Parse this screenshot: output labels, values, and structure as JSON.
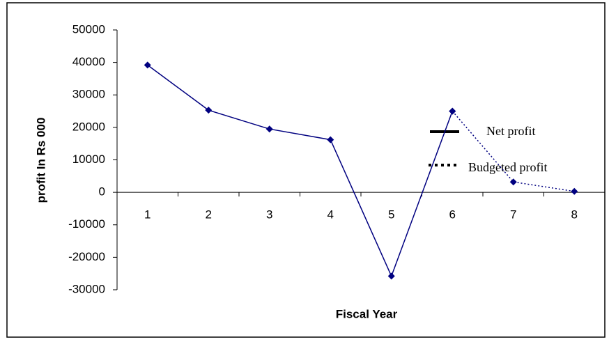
{
  "chart_data": {
    "type": "line",
    "x_label": "Fiscal Year",
    "y_label": "profit In Rs 000",
    "categories": [
      "1",
      "2",
      "3",
      "4",
      "5",
      "6",
      "7",
      "8"
    ],
    "series": [
      {
        "name": "Net profit",
        "color": "#000080",
        "line_style": "solid",
        "values": [
          39200,
          25300,
          19500,
          16200,
          -25800,
          25000,
          null,
          null
        ]
      },
      {
        "name": "Budgeted profit",
        "color": "#000080",
        "line_style": "dotted",
        "values": [
          null,
          null,
          null,
          null,
          null,
          25000,
          3200,
          300
        ]
      }
    ],
    "ylim": [
      -30000,
      50000
    ],
    "yticks": [
      -30000,
      -20000,
      -10000,
      0,
      10000,
      20000,
      30000,
      40000,
      50000
    ]
  }
}
